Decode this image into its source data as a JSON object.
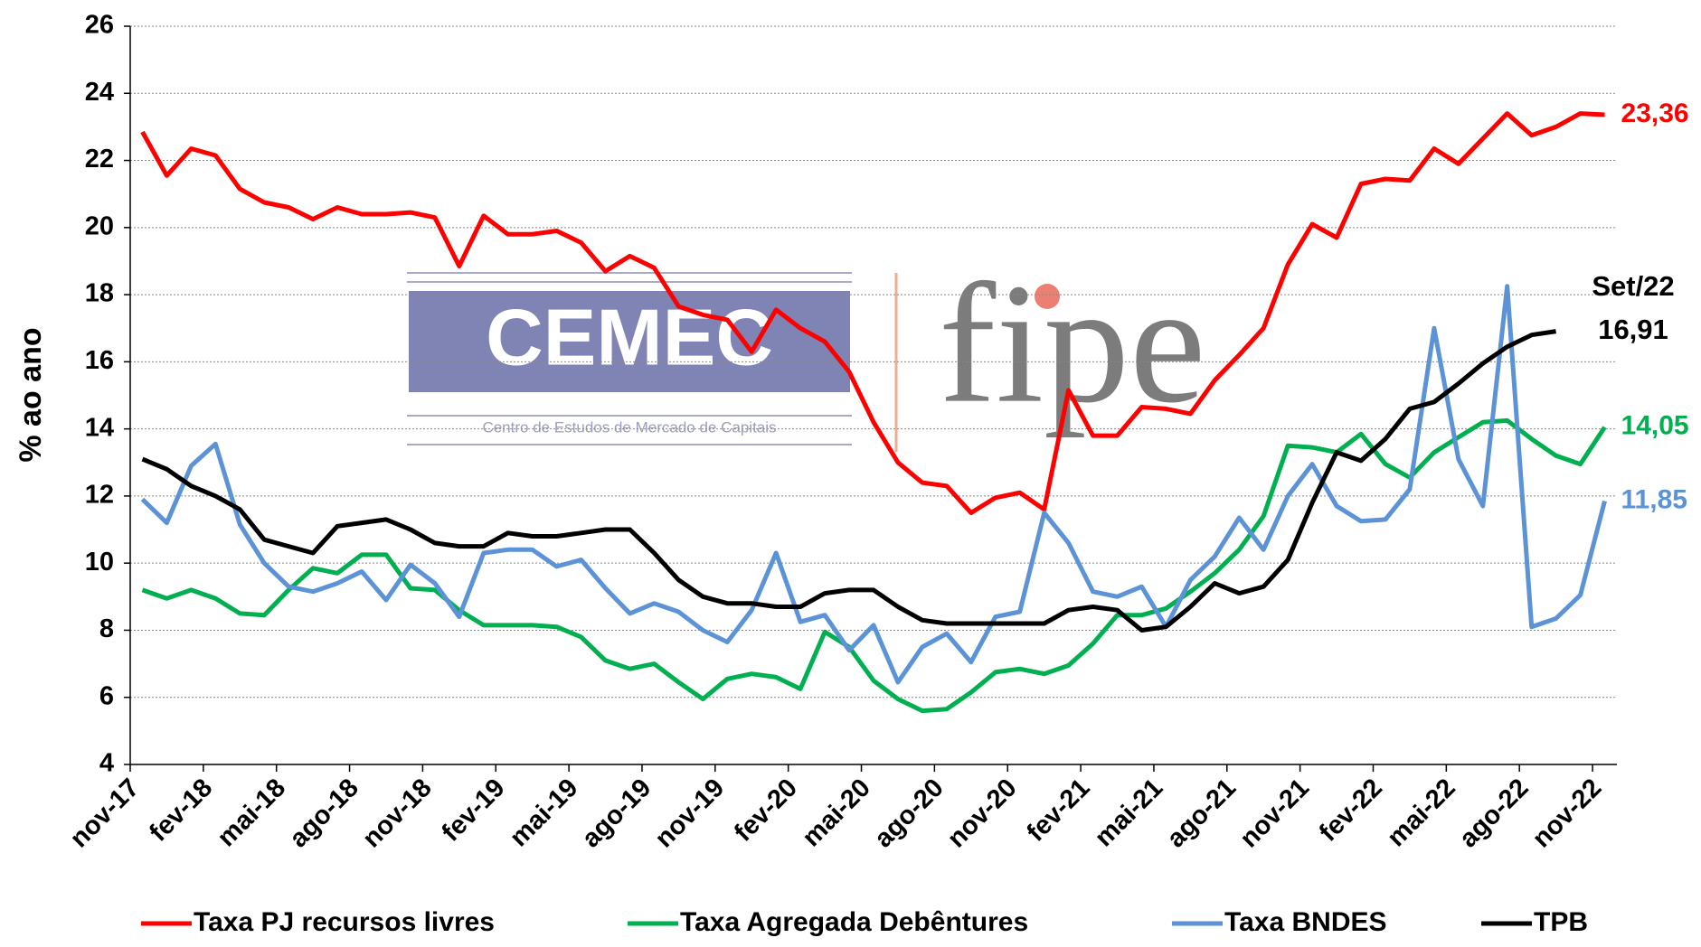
{
  "chart_data": {
    "type": "line",
    "y_label": "% ao ano",
    "categories": [
      "nov-17",
      null,
      null,
      "fev-18",
      null,
      null,
      "mai-18",
      null,
      null,
      "ago-18",
      null,
      null,
      "nov-18",
      null,
      null,
      "fev-19",
      null,
      null,
      "mai-19",
      null,
      null,
      "ago-19",
      null,
      null,
      "nov-19",
      null,
      null,
      "fev-20",
      null,
      null,
      "mai-20",
      null,
      null,
      "ago-20",
      null,
      null,
      "nov-20",
      null,
      null,
      "fev-21",
      null,
      null,
      "mai-21",
      null,
      null,
      "ago-21",
      null,
      null,
      "nov-21",
      null,
      null,
      "fev-22",
      null,
      null,
      "mai-22",
      null,
      null,
      "ago-22",
      null,
      null,
      "nov-22"
    ],
    "series": [
      {
        "name": "Taxa PJ recursos livres",
        "color": "#ff0000",
        "values": [
          22.85,
          21.55,
          22.35,
          22.15,
          21.15,
          20.75,
          20.6,
          20.25,
          20.6,
          20.4,
          20.4,
          20.45,
          20.3,
          18.85,
          20.35,
          19.8,
          19.8,
          19.9,
          19.55,
          18.7,
          19.15,
          18.8,
          17.65,
          17.4,
          17.25,
          16.3,
          17.55,
          17.0,
          16.6,
          15.7,
          14.2,
          13.0,
          12.4,
          12.3,
          11.5,
          11.95,
          12.1,
          11.6,
          15.15,
          13.8,
          13.8,
          14.65,
          14.6,
          14.45,
          15.45,
          16.2,
          17.0,
          18.9,
          20.1,
          19.7,
          21.3,
          21.45,
          21.4,
          22.35,
          21.9,
          22.65,
          23.4,
          22.75,
          23.0,
          23.4,
          23.36
        ],
        "value_labels": [
          null,
          null,
          null,
          null,
          null,
          null,
          null,
          null,
          null,
          null,
          null,
          null,
          null,
          null,
          null,
          null,
          null,
          null,
          null,
          null,
          null,
          null,
          null,
          null,
          null,
          null,
          null,
          null,
          null,
          null,
          null,
          null,
          null,
          null,
          null,
          null,
          null,
          null,
          null,
          null,
          null,
          null,
          null,
          null,
          null,
          null,
          null,
          null,
          null,
          null,
          null,
          null,
          null,
          null,
          null,
          null,
          null,
          null,
          null,
          null,
          "23,36"
        ]
      },
      {
        "name": "Taxa Agregada Debêntures",
        "color": "#00b050",
        "values": [
          9.2,
          8.95,
          9.2,
          8.95,
          8.5,
          8.45,
          9.2,
          9.85,
          9.7,
          10.25,
          10.25,
          9.25,
          9.2,
          8.6,
          8.15,
          8.15,
          8.15,
          8.1,
          7.8,
          7.1,
          6.85,
          7.0,
          6.45,
          5.95,
          6.55,
          6.7,
          6.6,
          6.25,
          7.95,
          7.5,
          6.5,
          5.95,
          5.6,
          5.65,
          6.15,
          6.75,
          6.85,
          6.7,
          6.95,
          7.6,
          8.45,
          8.45,
          8.65,
          9.15,
          9.7,
          10.4,
          11.4,
          13.5,
          13.45,
          13.3,
          13.85,
          12.95,
          12.55,
          13.3,
          13.75,
          14.2,
          14.25,
          13.7,
          13.2,
          12.95,
          14.05
        ],
        "value_labels": [
          null,
          null,
          null,
          null,
          null,
          null,
          null,
          null,
          null,
          null,
          null,
          null,
          null,
          null,
          null,
          null,
          null,
          null,
          null,
          null,
          null,
          null,
          null,
          null,
          null,
          null,
          null,
          null,
          null,
          null,
          null,
          null,
          null,
          null,
          null,
          null,
          null,
          null,
          null,
          null,
          null,
          null,
          null,
          null,
          null,
          null,
          null,
          null,
          null,
          null,
          null,
          null,
          null,
          null,
          null,
          null,
          null,
          null,
          null,
          null,
          "14,05"
        ]
      },
      {
        "name": "Taxa BNDES",
        "color": "#5b93d6",
        "values": [
          11.9,
          11.2,
          12.9,
          13.55,
          11.15,
          10.0,
          9.3,
          9.15,
          9.4,
          9.75,
          8.9,
          9.95,
          9.4,
          8.4,
          10.3,
          10.4,
          10.4,
          9.9,
          10.1,
          9.25,
          8.5,
          8.8,
          8.55,
          8.0,
          7.65,
          8.6,
          10.3,
          8.25,
          8.45,
          7.4,
          8.15,
          6.45,
          7.5,
          7.9,
          7.05,
          8.4,
          8.55,
          11.5,
          10.6,
          9.15,
          9.0,
          9.3,
          8.1,
          9.5,
          10.2,
          11.35,
          10.4,
          12.0,
          12.95,
          11.7,
          11.25,
          11.3,
          12.2,
          17.0,
          13.1,
          11.7,
          18.25,
          8.1,
          8.35,
          9.05,
          11.85
        ],
        "value_labels": [
          null,
          null,
          null,
          null,
          null,
          null,
          null,
          null,
          null,
          null,
          null,
          null,
          null,
          null,
          null,
          null,
          null,
          null,
          null,
          null,
          null,
          null,
          null,
          null,
          null,
          null,
          null,
          null,
          null,
          null,
          null,
          null,
          null,
          null,
          null,
          null,
          null,
          null,
          null,
          null,
          null,
          null,
          null,
          null,
          null,
          null,
          null,
          null,
          null,
          null,
          null,
          null,
          null,
          null,
          null,
          null,
          null,
          null,
          null,
          null,
          "11,85"
        ]
      },
      {
        "name": "TPB",
        "color": "#000000",
        "values": [
          13.1,
          12.8,
          12.3,
          12.0,
          11.6,
          10.7,
          10.5,
          10.3,
          11.1,
          11.2,
          11.3,
          11.0,
          10.6,
          10.5,
          10.5,
          10.9,
          10.8,
          10.8,
          10.9,
          11.0,
          11.0,
          10.3,
          9.5,
          9.0,
          8.8,
          8.8,
          8.7,
          8.7,
          9.1,
          9.2,
          9.2,
          8.7,
          8.3,
          8.2,
          8.2,
          8.2,
          8.2,
          8.2,
          8.6,
          8.7,
          8.6,
          8.0,
          8.1,
          8.7,
          9.4,
          9.1,
          9.3,
          10.1,
          11.8,
          13.3,
          13.05,
          13.7,
          14.6,
          14.8,
          15.35,
          15.95,
          16.45,
          16.8,
          16.91,
          null,
          null
        ],
        "value_labels": [
          null,
          null,
          null,
          null,
          null,
          null,
          null,
          null,
          null,
          null,
          null,
          null,
          null,
          null,
          null,
          null,
          null,
          null,
          null,
          null,
          null,
          null,
          null,
          null,
          null,
          null,
          null,
          null,
          null,
          null,
          null,
          null,
          null,
          null,
          null,
          null,
          null,
          null,
          null,
          null,
          null,
          null,
          null,
          null,
          null,
          null,
          null,
          null,
          null,
          null,
          null,
          null,
          null,
          null,
          null,
          null,
          null,
          null,
          "16,91",
          null,
          null
        ],
        "annotation": "Set/22"
      }
    ],
    "ylim": [
      4,
      26
    ],
    "yticks": [
      4,
      6,
      8,
      10,
      12,
      14,
      16,
      18,
      20,
      22,
      24,
      26
    ],
    "grid": true,
    "legend": "bottom",
    "watermark": {
      "name": "CEMEC",
      "subtitle": "Centro de Estudos de Mercado de Capitais",
      "partner": "fipe"
    }
  }
}
